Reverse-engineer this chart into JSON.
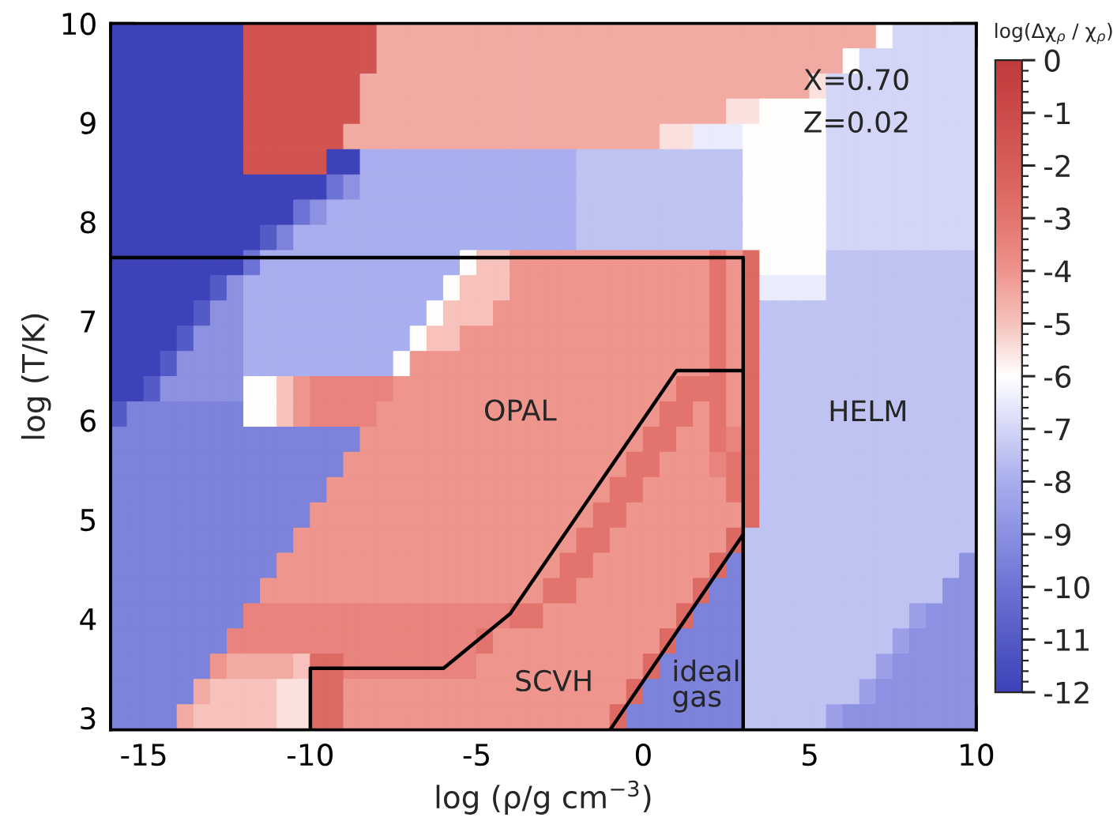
{
  "chart_data": {
    "type": "heatmap",
    "xlabel": "log (ρ/g cm$^{−3}$)",
    "ylabel": "log (T/K)",
    "clabel": "log(Δχ$_{ρ}$ / χ$_{ρ}$)",
    "xlim": [
      -16,
      10
    ],
    "ylim": [
      2.88,
      10
    ],
    "xticks": [
      -15,
      -10,
      -5,
      0,
      5,
      10
    ],
    "yticks": [
      3,
      4,
      5,
      6,
      7,
      8,
      9,
      10
    ],
    "clim": [
      -12,
      0
    ],
    "cticks": [
      -12,
      -11,
      -10,
      -9,
      -8,
      -7,
      -6,
      -5,
      -4,
      -3,
      -2,
      -1,
      0
    ],
    "cells": [
      [
        -12,
        -12,
        -12,
        -12,
        -12,
        -12,
        -12,
        -12,
        -1.5,
        -1.5,
        -1.5,
        -1.5,
        -1.5,
        -1.5,
        -1.5,
        -1.5,
        -4.5,
        -4.5,
        -4.5,
        -4.5,
        -4.5,
        -4.5,
        -4.5,
        -4.5,
        -4.5,
        -4.5,
        -4.5,
        -4.5,
        -4.5,
        -4.5,
        -4.5,
        -4.5,
        -4.5,
        -4.5,
        -4.5,
        -4.5,
        -4.5,
        -4.5,
        -4.5,
        -4.5,
        -4.5,
        -4.5,
        -4.5,
        -4.5,
        -4.5,
        -4.5,
        -6,
        -7,
        -7,
        -7,
        -7,
        -7
      ],
      [
        -12,
        -12,
        -12,
        -12,
        -12,
        -12,
        -12,
        -12,
        -1.5,
        -1.5,
        -1.5,
        -1.5,
        -1.5,
        -1.5,
        -1.5,
        -1.5,
        -4.5,
        -4.5,
        -4.5,
        -4.5,
        -4.5,
        -4.5,
        -4.5,
        -4.5,
        -4.5,
        -4.5,
        -4.5,
        -4.5,
        -4.5,
        -4.5,
        -4.5,
        -4.5,
        -4.5,
        -4.5,
        -4.5,
        -4.5,
        -4.5,
        -4.5,
        -4.5,
        -4.5,
        -4.5,
        -4.5,
        -4.5,
        -4.5,
        -6,
        -7,
        -7,
        -7,
        -7,
        -7,
        -7,
        -7
      ],
      [
        -12,
        -12,
        -12,
        -12,
        -12,
        -12,
        -12,
        -12,
        -1.5,
        -1.5,
        -1.5,
        -1.5,
        -1.5,
        -1.5,
        -1.5,
        -4.5,
        -4.5,
        -4.5,
        -4.5,
        -4.5,
        -4.5,
        -4.5,
        -4.5,
        -4.5,
        -4.5,
        -4.5,
        -4.5,
        -4.5,
        -4.5,
        -4.5,
        -4.5,
        -4.5,
        -4.5,
        -4.5,
        -4.5,
        -4.5,
        -4.5,
        -4.5,
        -4.5,
        -4.5,
        -4.5,
        -4.5,
        -5.5,
        -7,
        -7,
        -7,
        -7,
        -7,
        -7,
        -7,
        -7,
        -7
      ],
      [
        -12,
        -12,
        -12,
        -12,
        -12,
        -12,
        -12,
        -12,
        -1.5,
        -1.5,
        -1.5,
        -1.5,
        -1.5,
        -1.5,
        -1.5,
        -4.5,
        -4.5,
        -4.5,
        -4.5,
        -4.5,
        -4.5,
        -4.5,
        -4.5,
        -4.5,
        -4.5,
        -4.5,
        -4.5,
        -4.5,
        -4.5,
        -4.5,
        -4.5,
        -4.5,
        -4.5,
        -4.5,
        -4.5,
        -4.5,
        -4.5,
        -5.5,
        -5.5,
        -6,
        -6,
        -6,
        -6,
        -7,
        -7,
        -7,
        -7,
        -7,
        -7,
        -7,
        -7,
        -7
      ],
      [
        -12,
        -12,
        -12,
        -12,
        -12,
        -12,
        -12,
        -12,
        -1.5,
        -1.5,
        -1.5,
        -1.5,
        -1.5,
        -1.5,
        -4.5,
        -4.5,
        -4.5,
        -4.5,
        -4.5,
        -4.5,
        -4.5,
        -4.5,
        -4.5,
        -4.5,
        -4.5,
        -4.5,
        -4.5,
        -4.5,
        -4.5,
        -4.5,
        -4.5,
        -4.5,
        -4.5,
        -5.5,
        -5.5,
        -6.5,
        -6.5,
        -6.5,
        -6,
        -6,
        -6,
        -6,
        -6,
        -7,
        -7,
        -7,
        -7,
        -7,
        -7,
        -7,
        -7,
        -7
      ],
      [
        -12,
        -12,
        -12,
        -12,
        -12,
        -12,
        -12,
        -12,
        -1.5,
        -1.5,
        -1.5,
        -1.5,
        -1.5,
        -12,
        -12,
        -8,
        -8,
        -8,
        -8,
        -8,
        -8,
        -8,
        -8,
        -8,
        -8,
        -8,
        -8,
        -8,
        -7.5,
        -7.5,
        -7.5,
        -7.5,
        -7.5,
        -7.5,
        -7.5,
        -7.5,
        -7.5,
        -7.5,
        -6,
        -6,
        -6,
        -6,
        -6,
        -7,
        -7,
        -7,
        -7,
        -7,
        -7,
        -7,
        -7,
        -7
      ],
      [
        -12,
        -12,
        -12,
        -12,
        -12,
        -12,
        -12,
        -12,
        -12,
        -12,
        -12,
        -12,
        -12,
        -10,
        -9,
        -8,
        -8,
        -8,
        -8,
        -8,
        -8,
        -8,
        -8,
        -8,
        -8,
        -8,
        -8,
        -8,
        -7.5,
        -7.5,
        -7.5,
        -7.5,
        -7.5,
        -7.5,
        -7.5,
        -7.5,
        -7.5,
        -7.5,
        -6,
        -6,
        -6,
        -6,
        -6,
        -7,
        -7,
        -7,
        -7,
        -7,
        -7,
        -7,
        -7,
        -7
      ],
      [
        -12,
        -12,
        -12,
        -12,
        -12,
        -12,
        -12,
        -12,
        -12,
        -12,
        -12,
        -10,
        -9,
        -8,
        -8,
        -8,
        -8,
        -8,
        -8,
        -8,
        -8,
        -8,
        -8,
        -8,
        -8,
        -8,
        -8,
        -8,
        -7.5,
        -7.5,
        -7.5,
        -7.5,
        -7.5,
        -7.5,
        -7.5,
        -7.5,
        -7.5,
        -7.5,
        -6,
        -6,
        -6,
        -6,
        -6,
        -7,
        -7,
        -7,
        -7,
        -7,
        -7,
        -7,
        -7,
        -7
      ],
      [
        -12,
        -12,
        -12,
        -12,
        -12,
        -12,
        -12,
        -12,
        -12,
        -11,
        -9.5,
        -8,
        -8,
        -8,
        -8,
        -8,
        -8,
        -8,
        -8,
        -8,
        -8,
        -8,
        -8,
        -8,
        -8,
        -8,
        -8,
        -8,
        -7.5,
        -7.5,
        -7.5,
        -7.5,
        -7.5,
        -7.5,
        -7.5,
        -7.5,
        -7.5,
        -7.5,
        -6,
        -6,
        -6,
        -6,
        -6,
        -7,
        -7,
        -7,
        -7,
        -7,
        -7,
        -7,
        -7,
        -7
      ],
      [
        -12,
        -12,
        -12,
        -12,
        -12,
        -12,
        -12,
        -12,
        -10,
        -8,
        -8,
        -8,
        -8,
        -8,
        -8,
        -8,
        -8,
        -8,
        -8,
        -8,
        -8,
        -6,
        -5,
        -5,
        -4,
        -4,
        -4,
        -4,
        -4,
        -4,
        -4,
        -4,
        -4,
        -4,
        -4,
        -4,
        -3,
        -4,
        -2.5,
        -6,
        -6,
        -6,
        -6,
        -7.5,
        -7.5,
        -7.5,
        -7.5,
        -7.5,
        -7.5,
        -7.5,
        -7.5,
        -7.5
      ],
      [
        -12,
        -12,
        -12,
        -12,
        -12,
        -12,
        -11,
        -9,
        -8,
        -8,
        -8,
        -8,
        -8,
        -8,
        -8,
        -8,
        -8,
        -8,
        -8,
        -8,
        -6,
        -5,
        -5,
        -5,
        -4,
        -4,
        -4,
        -4,
        -4,
        -4,
        -4,
        -4,
        -4,
        -4,
        -4,
        -4,
        -3,
        -4,
        -2.5,
        -6.5,
        -6.5,
        -6.5,
        -6.5,
        -7.5,
        -7.5,
        -7.5,
        -7.5,
        -7.5,
        -7.5,
        -7.5,
        -7.5,
        -7.5
      ],
      [
        -12,
        -12,
        -12,
        -12,
        -12,
        -11,
        -9,
        -9,
        -8,
        -8,
        -8,
        -8,
        -8,
        -8,
        -8,
        -8,
        -8,
        -8,
        -8,
        -6,
        -5,
        -5,
        -5,
        -4,
        -4,
        -4,
        -4,
        -4,
        -4,
        -4,
        -4,
        -4,
        -4,
        -4,
        -4,
        -4,
        -3,
        -4,
        -2.5,
        -7.5,
        -7.5,
        -7.5,
        -7.5,
        -7.5,
        -7.5,
        -7.5,
        -7.5,
        -7.5,
        -7.5,
        -7.5,
        -7.5,
        -7.5
      ],
      [
        -12,
        -12,
        -12,
        -12,
        -11,
        -9,
        -9,
        -9,
        -8,
        -8,
        -8,
        -8,
        -8,
        -8,
        -8,
        -8,
        -8,
        -8,
        -6,
        -5,
        -5,
        -4,
        -4,
        -4,
        -4,
        -4,
        -4,
        -4,
        -4,
        -4,
        -4,
        -4,
        -4,
        -4,
        -4,
        -4,
        -3,
        -4,
        -2.5,
        -7.5,
        -7.5,
        -7.5,
        -7.5,
        -7.5,
        -7.5,
        -7.5,
        -7.5,
        -7.5,
        -7.5,
        -7.5,
        -7.5,
        -7.5
      ],
      [
        -12,
        -12,
        -12,
        -11,
        -9,
        -9,
        -9,
        -9,
        -8,
        -8,
        -8,
        -8,
        -8,
        -8,
        -8,
        -8,
        -8,
        -6,
        -4,
        -4,
        -4,
        -4,
        -4,
        -4,
        -4,
        -4,
        -4,
        -4,
        -4,
        -4,
        -4,
        -4,
        -4,
        -4,
        -4,
        -4,
        -3,
        -4,
        -2.5,
        -7.5,
        -7.5,
        -7.5,
        -7.5,
        -7.5,
        -7.5,
        -7.5,
        -7.5,
        -7.5,
        -7.5,
        -7.5,
        -7.5,
        -7.5
      ],
      [
        -12,
        -12,
        -11,
        -9,
        -9,
        -9,
        -9,
        -9,
        -6,
        -6,
        -5,
        -4,
        -3.5,
        -3.5,
        -3.5,
        -3.5,
        -3.5,
        -4,
        -4,
        -4,
        -4,
        -4,
        -4,
        -4,
        -4,
        -4,
        -4,
        -4,
        -4,
        -4,
        -4,
        -4,
        -4,
        -4,
        -3,
        -3,
        -3,
        -4,
        -2.5,
        -7.5,
        -7.5,
        -7.5,
        -7.5,
        -7.5,
        -7.5,
        -7.5,
        -7.5,
        -7.5,
        -7.5,
        -7.5,
        -7.5,
        -7.5
      ],
      [
        -11,
        -9.5,
        -9.5,
        -9.5,
        -9.5,
        -9.5,
        -9.5,
        -9.5,
        -6,
        -6,
        -5,
        -4,
        -3.5,
        -3.5,
        -3.5,
        -3.5,
        -4,
        -4,
        -4,
        -4,
        -4,
        -4,
        -4,
        -4,
        -4,
        -4,
        -4,
        -4,
        -4,
        -4,
        -4,
        -4,
        -4,
        -3,
        -3,
        -4,
        -3,
        -4,
        -2.5,
        -7.5,
        -7.5,
        -7.5,
        -7.5,
        -7.5,
        -7.5,
        -7.5,
        -7.5,
        -7.5,
        -7.5,
        -7.5,
        -7.5,
        -7.5
      ],
      [
        -9.5,
        -9.5,
        -9.5,
        -9.5,
        -9.5,
        -9.5,
        -9.5,
        -9.5,
        -9.5,
        -9.5,
        -9.5,
        -9.5,
        -9.5,
        -9.5,
        -9.5,
        -4,
        -4,
        -4,
        -4,
        -4,
        -4,
        -4,
        -4,
        -4,
        -4,
        -4,
        -4,
        -4,
        -4,
        -4,
        -4,
        -4,
        -3,
        -3,
        -4,
        -4,
        -3,
        -3.5,
        -2.5,
        -7.5,
        -7.5,
        -7.5,
        -7.5,
        -7.5,
        -7.5,
        -7.5,
        -7.5,
        -7.5,
        -7.5,
        -7.5,
        -7.5,
        -7.5
      ],
      [
        -9.5,
        -9.5,
        -9.5,
        -9.5,
        -9.5,
        -9.5,
        -9.5,
        -9.5,
        -9.5,
        -9.5,
        -9.5,
        -9.5,
        -9.5,
        -9.5,
        -4,
        -4,
        -4,
        -4,
        -4,
        -4,
        -4,
        -4,
        -4,
        -4,
        -4,
        -4,
        -4,
        -4,
        -4,
        -4,
        -4,
        -3,
        -3,
        -4,
        -4,
        -4,
        -3.5,
        -3,
        -2.5,
        -7.5,
        -7.5,
        -7.5,
        -7.5,
        -7.5,
        -7.5,
        -7.5,
        -7.5,
        -7.5,
        -7.5,
        -7.5,
        -7.5,
        -7.5
      ],
      [
        -9.5,
        -9.5,
        -9.5,
        -9.5,
        -9.5,
        -9.5,
        -9.5,
        -9.5,
        -9.5,
        -9.5,
        -9.5,
        -9.5,
        -9.5,
        -4,
        -4,
        -4,
        -4,
        -4,
        -4,
        -4,
        -4,
        -4,
        -4,
        -4,
        -4,
        -4,
        -4,
        -4,
        -4,
        -4,
        -3,
        -3,
        -4,
        -4,
        -4,
        -4,
        -4,
        -3,
        -2.5,
        -7.5,
        -7.5,
        -7.5,
        -7.5,
        -7.5,
        -7.5,
        -7.5,
        -7.5,
        -7.5,
        -7.5,
        -7.5,
        -7.5,
        -7.5
      ],
      [
        -9.5,
        -9.5,
        -9.5,
        -9.5,
        -9.5,
        -9.5,
        -9.5,
        -9.5,
        -9.5,
        -9.5,
        -9.5,
        -9.5,
        -4,
        -4,
        -4,
        -4,
        -4,
        -4,
        -4,
        -4,
        -4,
        -4,
        -4,
        -4,
        -4,
        -4,
        -4,
        -4,
        -4,
        -3,
        -3,
        -4,
        -4,
        -4,
        -4,
        -4,
        -4,
        -4,
        -2.5,
        -7.5,
        -7.5,
        -7.5,
        -7.5,
        -7.5,
        -7.5,
        -7.5,
        -7.5,
        -7.5,
        -7.5,
        -7.5,
        -7.5,
        -7.5
      ],
      [
        -9.5,
        -9.5,
        -9.5,
        -9.5,
        -9.5,
        -9.5,
        -9.5,
        -9.5,
        -9.5,
        -9.5,
        -9.5,
        -4,
        -4,
        -4,
        -4,
        -4,
        -4,
        -4,
        -4,
        -4,
        -4,
        -4,
        -4,
        -4,
        -4,
        -4,
        -4,
        -4,
        -3,
        -3,
        -4,
        -4,
        -4,
        -4,
        -4,
        -4,
        -4,
        -2.5,
        -7.5,
        -7.5,
        -7.5,
        -7.5,
        -7.5,
        -7.5,
        -7.5,
        -7.5,
        -7.5,
        -7.5,
        -7.5,
        -7.5,
        -7.5,
        -7.5
      ],
      [
        -9.5,
        -9.5,
        -9.5,
        -9.5,
        -9.5,
        -9.5,
        -9.5,
        -9.5,
        -9.5,
        -9.5,
        -4,
        -4,
        -4,
        -4,
        -4,
        -4,
        -4,
        -4,
        -4,
        -4,
        -4,
        -4,
        -4,
        -4,
        -4,
        -4,
        -4,
        -3,
        -3,
        -4,
        -4,
        -4,
        -4,
        -4,
        -4,
        -4,
        -2.5,
        -9.5,
        -7.5,
        -7.5,
        -7.5,
        -7.5,
        -7.5,
        -7.5,
        -7.5,
        -7.5,
        -7.5,
        -7.5,
        -7.5,
        -7.5,
        -7.5,
        -9
      ],
      [
        -9.5,
        -9.5,
        -9.5,
        -9.5,
        -9.5,
        -9.5,
        -9.5,
        -9.5,
        -9.5,
        -4,
        -4,
        -4,
        -4,
        -4,
        -4,
        -4,
        -4,
        -4,
        -4,
        -4,
        -4,
        -4,
        -4,
        -4,
        -4,
        -4,
        -3,
        -3,
        -4,
        -4,
        -4,
        -4,
        -4,
        -4,
        -4,
        -2.5,
        -9.5,
        -9.5,
        -7.5,
        -7.5,
        -7.5,
        -7.5,
        -7.5,
        -7.5,
        -7.5,
        -7.5,
        -7.5,
        -7.5,
        -7.5,
        -7.5,
        -9,
        -9
      ],
      [
        -9.5,
        -9.5,
        -9.5,
        -9.5,
        -9.5,
        -9.5,
        -9.5,
        -9.5,
        -3.5,
        -3.5,
        -3.5,
        -3.5,
        -3.5,
        -3.5,
        -3.5,
        -3.5,
        -3.5,
        -3.5,
        -3.5,
        -3.5,
        -3.5,
        -3.5,
        -3.5,
        -3.5,
        -3,
        -3,
        -4,
        -4,
        -4,
        -4,
        -4,
        -4,
        -4,
        -4,
        -2.5,
        -9.5,
        -9.5,
        -9.5,
        -7.5,
        -7.5,
        -7.5,
        -7.5,
        -7.5,
        -7.5,
        -7.5,
        -7.5,
        -7.5,
        -7.5,
        -8.5,
        -9,
        -9,
        -9
      ],
      [
        -9.5,
        -9.5,
        -9.5,
        -9.5,
        -9.5,
        -9.5,
        -9.5,
        -3.5,
        -3.5,
        -3.5,
        -3.5,
        -3.5,
        -3.5,
        -3.5,
        -3.5,
        -3.5,
        -3.5,
        -3.5,
        -3.5,
        -3.5,
        -3.5,
        -3.5,
        -3,
        -4,
        -4,
        -4,
        -4,
        -4,
        -4,
        -4,
        -4,
        -4,
        -4,
        -2.5,
        -9.5,
        -9.5,
        -9.5,
        -9.5,
        -7.5,
        -7.5,
        -7.5,
        -7.5,
        -7.5,
        -7.5,
        -7.5,
        -7.5,
        -7.5,
        -8.5,
        -9,
        -9,
        -9,
        -9
      ],
      [
        -9.5,
        -9.5,
        -9.5,
        -9.5,
        -9.5,
        -9.5,
        -4,
        -4.5,
        -4.5,
        -4.5,
        -4.5,
        -5,
        -2.5,
        -2.5,
        -3.5,
        -3.5,
        -3.5,
        -3.5,
        -3.5,
        -3.5,
        -3.5,
        -3.5,
        -4,
        -4,
        -4,
        -4,
        -4,
        -4,
        -4,
        -4,
        -4,
        -4,
        -2.5,
        -9.5,
        -9.5,
        -9.5,
        -9.5,
        -9.5,
        -7.5,
        -7.5,
        -7.5,
        -7.5,
        -7.5,
        -7.5,
        -7.5,
        -7.5,
        -8.5,
        -9,
        -9,
        -9,
        -9,
        -9
      ],
      [
        -9.5,
        -9.5,
        -9.5,
        -9.5,
        -9.5,
        -4.5,
        -5,
        -5,
        -5,
        -5,
        -5.5,
        -5.5,
        -2.5,
        -2.5,
        -4,
        -4,
        -4,
        -4,
        -4,
        -4,
        -4,
        -4,
        -4,
        -4,
        -4,
        -4,
        -4,
        -4,
        -4,
        -4,
        -4,
        -2.5,
        -9.5,
        -9.5,
        -9.5,
        -9.5,
        -9.5,
        -9.5,
        -7.5,
        -7.5,
        -7.5,
        -7.5,
        -7.5,
        -7.5,
        -7.5,
        -8.5,
        -9,
        -9,
        -9,
        -9,
        -9,
        -9
      ],
      [
        -9.5,
        -9.5,
        -9.5,
        -9.5,
        -4.5,
        -5,
        -5,
        -5,
        -5,
        -5,
        -5.5,
        -5.5,
        -2.5,
        -2.5,
        -4,
        -4,
        -4,
        -4,
        -4,
        -4,
        -4,
        -4,
        -4,
        -4,
        -4,
        -4,
        -4,
        -4,
        -4,
        -4,
        -2.5,
        -9.5,
        -9.5,
        -9.5,
        -9.5,
        -9.5,
        -9.5,
        -9.5,
        -7.5,
        -7.5,
        -7.5,
        -7.5,
        -7.5,
        -8.5,
        -9,
        -9,
        -9,
        -9,
        -9,
        -9,
        -9,
        -9
      ]
    ],
    "series": [
      {
        "type": "line",
        "x": [
          -16,
          3,
          3
        ],
        "values": [
          7.64,
          7.64,
          2.88
        ],
        "color": "#000000"
      },
      {
        "type": "line",
        "x": [
          -10,
          -10,
          -6,
          -4,
          1,
          3
        ],
        "values": [
          2.88,
          3.5,
          3.5,
          4.05,
          6.5,
          6.5
        ],
        "color": "#000000"
      },
      {
        "type": "line",
        "x": [
          -1,
          3
        ],
        "values": [
          2.88,
          4.85
        ],
        "color": "#000000"
      }
    ],
    "annotations": [
      "OPAL",
      "HELM",
      "SCVH",
      "ideal\ngas",
      "X=0.70",
      "Z=0.02"
    ]
  }
}
